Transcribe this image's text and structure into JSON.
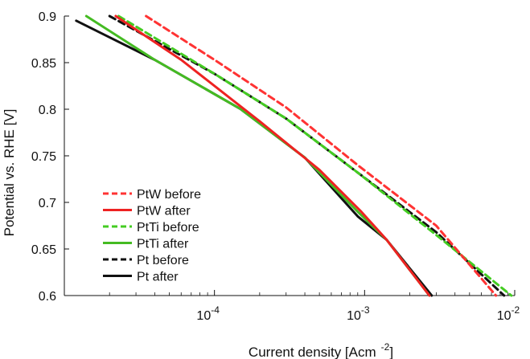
{
  "chart_data": {
    "type": "line",
    "xlabel": "Current density [Acm",
    "xlabel_superscript": "-2",
    "xlabel_suffix": "]",
    "ylabel": "Potential vs. RHE [V]",
    "x_scale": "log",
    "xlim": [
      1e-05,
      0.01
    ],
    "ylim": [
      0.6,
      0.9
    ],
    "x_ticks": [
      {
        "value": 0.0001,
        "base": "10",
        "exp": "-4"
      },
      {
        "value": 0.001,
        "base": "10",
        "exp": "-3"
      },
      {
        "value": 0.01,
        "base": "10",
        "exp": "-2"
      }
    ],
    "y_ticks": [
      {
        "value": 0.6,
        "label": "0.6"
      },
      {
        "value": 0.65,
        "label": "0.65"
      },
      {
        "value": 0.7,
        "label": "0.7"
      },
      {
        "value": 0.75,
        "label": "0.75"
      },
      {
        "value": 0.8,
        "label": "0.8"
      },
      {
        "value": 0.85,
        "label": "0.85"
      },
      {
        "value": 0.9,
        "label": "0.9"
      }
    ],
    "grid": false,
    "legend_position": "lower-left",
    "series": [
      {
        "name": "PtW before",
        "color": "#ff3333",
        "dash": true,
        "points": [
          [
            3.5e-05,
            0.9
          ],
          [
            0.0001,
            0.853
          ],
          [
            0.0003,
            0.802
          ],
          [
            0.0009,
            0.74
          ],
          [
            0.003,
            0.675
          ],
          [
            0.0075,
            0.6
          ]
        ]
      },
      {
        "name": "PtW after",
        "color": "#ee2222",
        "dash": false,
        "points": [
          [
            2.2e-05,
            0.9
          ],
          [
            6e-05,
            0.853
          ],
          [
            0.0002,
            0.787
          ],
          [
            0.0005,
            0.735
          ],
          [
            0.00095,
            0.69
          ],
          [
            0.0014,
            0.66
          ],
          [
            0.0027,
            0.6
          ]
        ]
      },
      {
        "name": "PtTi before",
        "color": "#44cc22",
        "dash": true,
        "points": [
          [
            2.3e-05,
            0.9
          ],
          [
            0.0001,
            0.838
          ],
          [
            0.0003,
            0.79
          ],
          [
            0.0009,
            0.732
          ],
          [
            0.003,
            0.665
          ],
          [
            0.0095,
            0.6
          ]
        ]
      },
      {
        "name": "PtTi after",
        "color": "#44bb22",
        "dash": false,
        "points": [
          [
            1.4e-05,
            0.9
          ],
          [
            4e-05,
            0.853
          ],
          [
            0.00015,
            0.8
          ],
          [
            0.0004,
            0.748
          ],
          [
            0.0009,
            0.69
          ],
          [
            0.0014,
            0.66
          ],
          [
            0.0027,
            0.6
          ]
        ]
      },
      {
        "name": "Pt before",
        "color": "#111111",
        "dash": true,
        "points": [
          [
            2e-05,
            0.9
          ],
          [
            0.0001,
            0.838
          ],
          [
            0.0003,
            0.79
          ],
          [
            0.0009,
            0.732
          ],
          [
            0.003,
            0.668
          ],
          [
            0.0085,
            0.6
          ]
        ]
      },
      {
        "name": "Pt after",
        "color": "#111111",
        "dash": false,
        "points": [
          [
            1.2e-05,
            0.895
          ],
          [
            4e-05,
            0.853
          ],
          [
            0.00015,
            0.8
          ],
          [
            0.0004,
            0.748
          ],
          [
            0.0009,
            0.685
          ],
          [
            0.0014,
            0.66
          ],
          [
            0.0028,
            0.6
          ]
        ]
      }
    ]
  }
}
